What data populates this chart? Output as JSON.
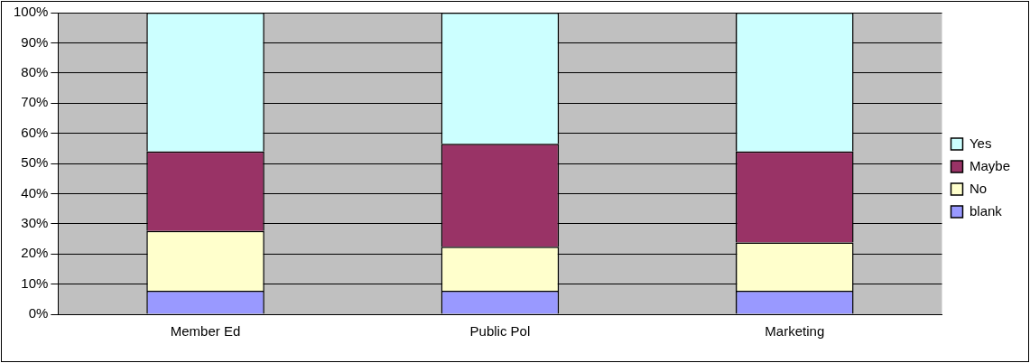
{
  "chart_data": {
    "type": "bar",
    "stacked": true,
    "categories": [
      "Member Ed",
      "Public Pol",
      "Marketing"
    ],
    "series": [
      {
        "name": "blank",
        "color": "#9999ff",
        "values": [
          7.8,
          7.8,
          7.8
        ]
      },
      {
        "name": "No",
        "color": "#ffffcc",
        "values": [
          19.8,
          14.6,
          16.0
        ]
      },
      {
        "name": "Maybe",
        "color": "#993366",
        "values": [
          26.4,
          34.1,
          30.2
        ]
      },
      {
        "name": "Yes",
        "color": "#ccffff",
        "values": [
          46.0,
          43.5,
          46.0
        ]
      }
    ],
    "ylim": [
      0,
      100
    ],
    "yticks": [
      {
        "value": 0,
        "label": "0%"
      },
      {
        "value": 10,
        "label": "10%"
      },
      {
        "value": 20,
        "label": "20%"
      },
      {
        "value": 30,
        "label": "30%"
      },
      {
        "value": 40,
        "label": "40%"
      },
      {
        "value": 50,
        "label": "50%"
      },
      {
        "value": 60,
        "label": "60%"
      },
      {
        "value": 70,
        "label": "70%"
      },
      {
        "value": 80,
        "label": "80%"
      },
      {
        "value": 90,
        "label": "90%"
      },
      {
        "value": 100,
        "label": "100%"
      }
    ],
    "grid": "y",
    "legend": "right"
  }
}
